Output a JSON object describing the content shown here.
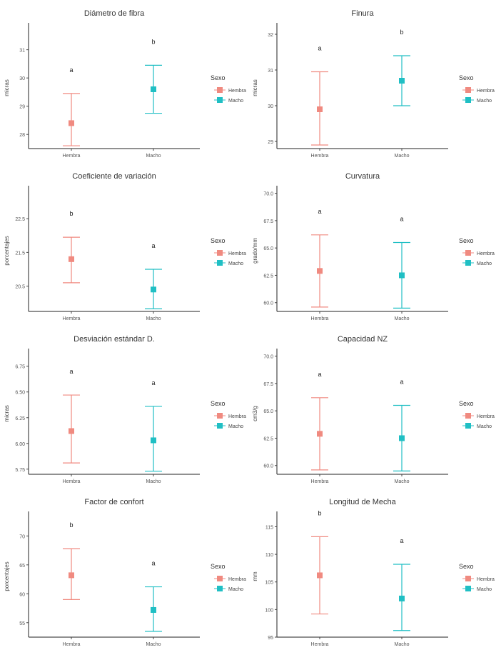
{
  "legend": {
    "title": "Sexo",
    "items": [
      {
        "label": "Hembra",
        "color": "#F08A80"
      },
      {
        "label": "Macho",
        "color": "#20BFC4"
      }
    ]
  },
  "chart_data": [
    {
      "type": "errorbar",
      "title": "Diámetro de fibra",
      "ylabel": "micras",
      "categories": [
        "Hembra",
        "Macho"
      ],
      "values": [
        28.4,
        29.6
      ],
      "lower": [
        27.6,
        28.75
      ],
      "upper": [
        29.45,
        30.45
      ],
      "letters": [
        "a",
        "b"
      ],
      "yticks": [
        "28",
        "29",
        "30",
        "31"
      ],
      "ylim": [
        27.5,
        31.8
      ]
    },
    {
      "type": "errorbar",
      "title": "Finura",
      "ylabel": "micras",
      "categories": [
        "Hembra",
        "Macho"
      ],
      "values": [
        29.9,
        30.7
      ],
      "lower": [
        28.9,
        30.0
      ],
      "upper": [
        30.95,
        31.4
      ],
      "letters": [
        "a",
        "b"
      ],
      "yticks": [
        "29",
        "30",
        "31",
        "32"
      ],
      "ylim": [
        28.8,
        32.2
      ]
    },
    {
      "type": "errorbar",
      "title": "Coeficiente de variación",
      "ylabel": "porcentajes",
      "categories": [
        "Hembra",
        "Macho"
      ],
      "values": [
        21.3,
        20.4
      ],
      "lower": [
        20.6,
        19.83
      ],
      "upper": [
        21.95,
        21.0
      ],
      "letters": [
        "b",
        "a"
      ],
      "yticks": [
        "20.5",
        "21.5",
        "22.5"
      ],
      "ylim": [
        19.75,
        23.35
      ]
    },
    {
      "type": "errorbar",
      "title": "Curvatura",
      "ylabel": "grado/mm",
      "categories": [
        "Hembra",
        "Macho"
      ],
      "values": [
        62.9,
        62.5
      ],
      "lower": [
        59.6,
        59.5
      ],
      "upper": [
        66.2,
        65.5
      ],
      "letters": [
        "a",
        "a"
      ],
      "yticks": [
        "60.0",
        "62.5",
        "65.0",
        "67.5",
        "70.0"
      ],
      "ylim": [
        59.2,
        70.3
      ]
    },
    {
      "type": "errorbar",
      "title": "Desviación estándar D.",
      "ylabel": "micras",
      "categories": [
        "Hembra",
        "Macho"
      ],
      "values": [
        6.12,
        6.03
      ],
      "lower": [
        5.81,
        5.73
      ],
      "upper": [
        6.47,
        6.36
      ],
      "letters": [
        "a",
        "a"
      ],
      "yticks": [
        "5.75",
        "6.00",
        "6.25",
        "6.50",
        "6.75"
      ],
      "ylim": [
        5.7,
        6.88
      ]
    },
    {
      "type": "errorbar",
      "title": "Capacidad NZ",
      "ylabel": "cm3/g",
      "categories": [
        "Hembra",
        "Macho"
      ],
      "values": [
        62.9,
        62.5
      ],
      "lower": [
        59.6,
        59.5
      ],
      "upper": [
        66.2,
        65.5
      ],
      "letters": [
        "a",
        "a"
      ],
      "yticks": [
        "60.0",
        "62.5",
        "65.0",
        "67.5",
        "70.0"
      ],
      "ylim": [
        59.2,
        70.3
      ]
    },
    {
      "type": "errorbar",
      "title": "Factor de confort",
      "ylabel": "porcentajes",
      "categories": [
        "Hembra",
        "Macho"
      ],
      "values": [
        63.2,
        57.2
      ],
      "lower": [
        59.0,
        53.5
      ],
      "upper": [
        67.8,
        61.2
      ],
      "letters": [
        "b",
        "a"
      ],
      "yticks": [
        "55",
        "60",
        "65",
        "70"
      ],
      "ylim": [
        52.5,
        73.5
      ]
    },
    {
      "type": "errorbar",
      "title": "Longitud de Mecha",
      "ylabel": "mm",
      "categories": [
        "Hembra",
        "Macho"
      ],
      "values": [
        106.2,
        102.0
      ],
      "lower": [
        99.2,
        96.2
      ],
      "upper": [
        113.2,
        108.2
      ],
      "letters": [
        "b",
        "a"
      ],
      "yticks": [
        "95",
        "100",
        "105",
        "110",
        "115"
      ],
      "ylim": [
        95.0,
        117.0
      ]
    }
  ]
}
